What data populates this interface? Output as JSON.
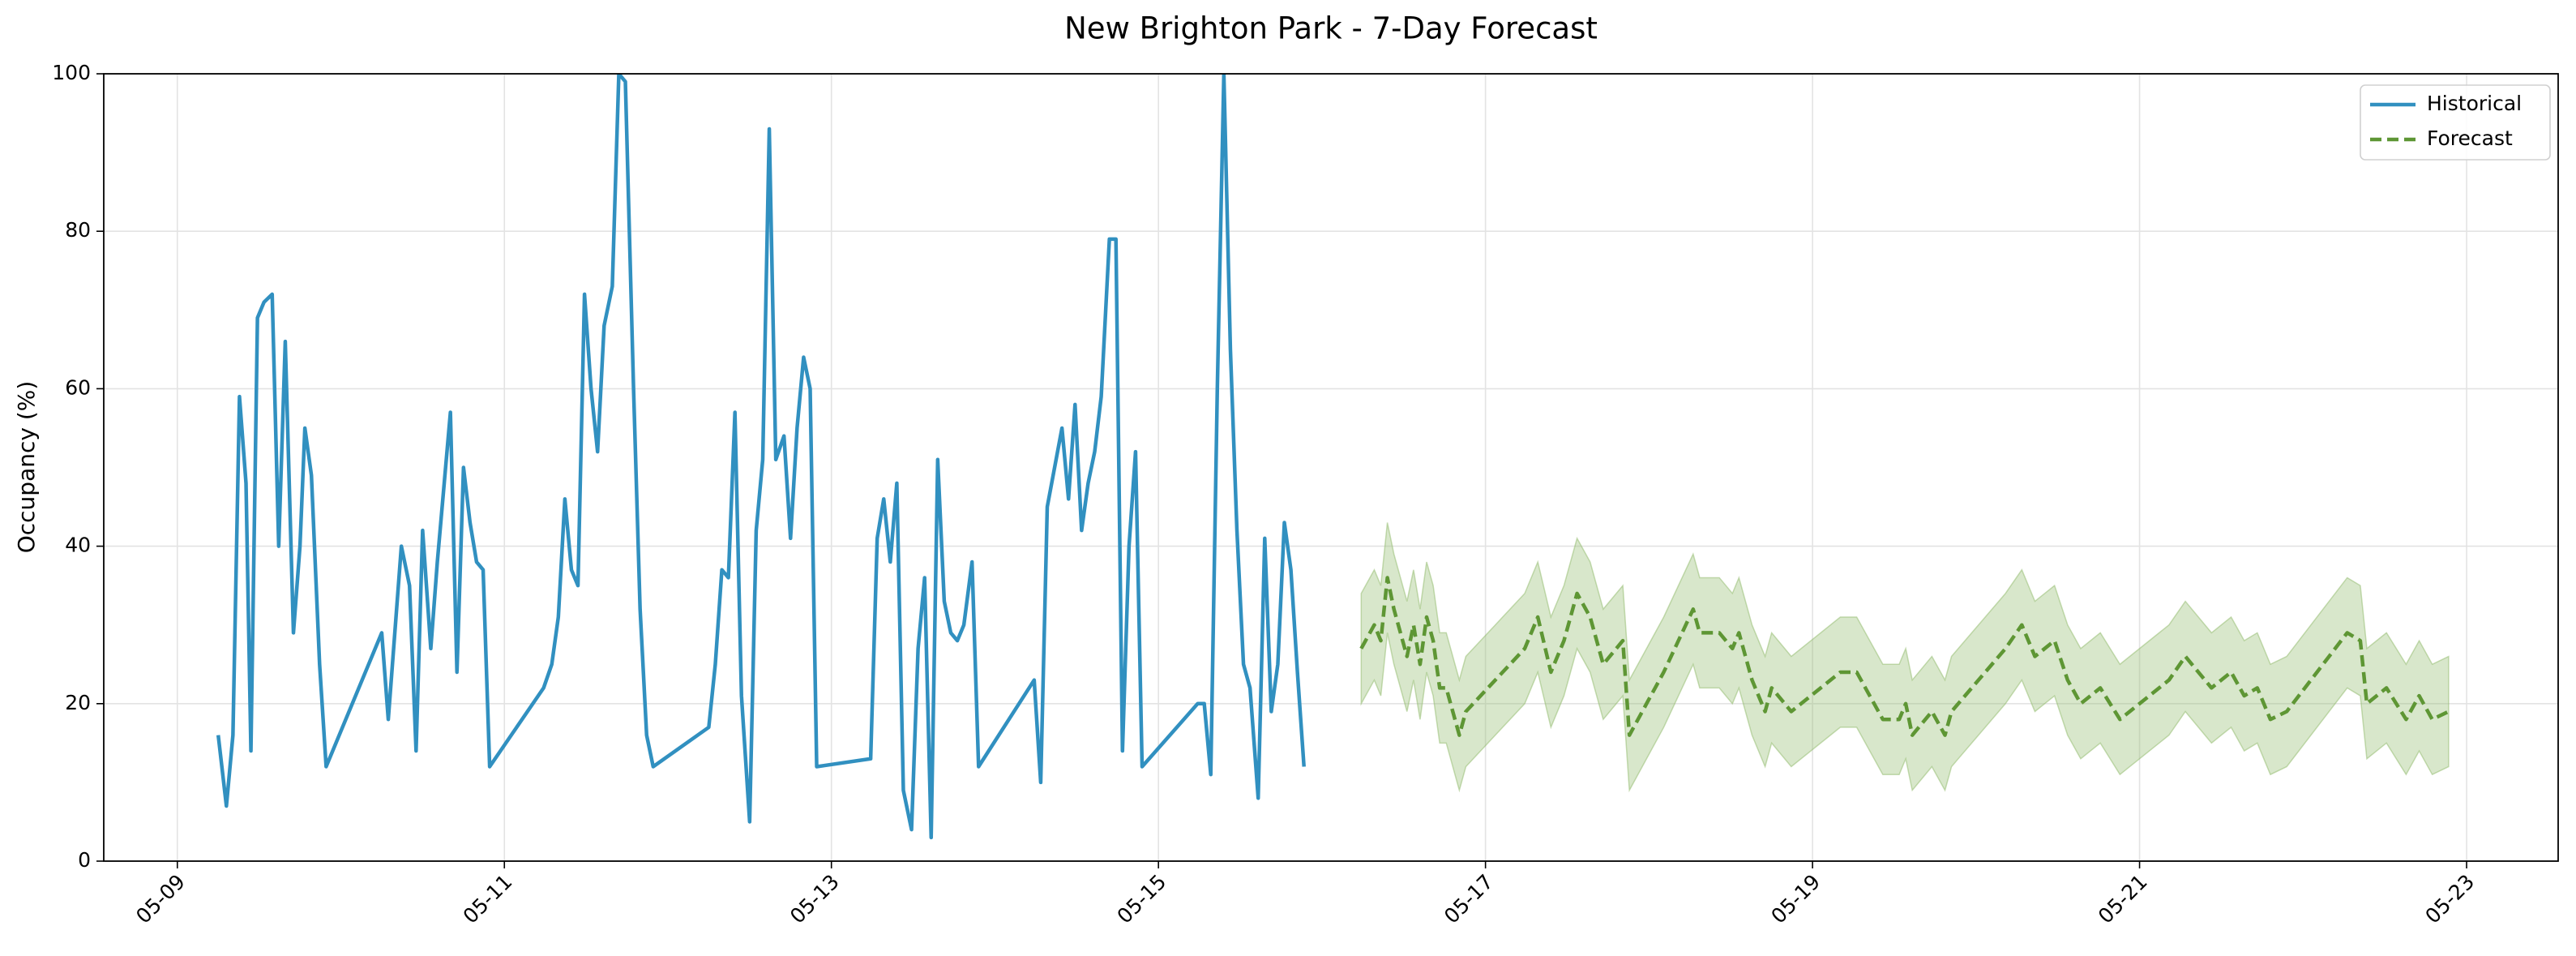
{
  "chart_data": {
    "type": "line",
    "title": "New Brighton Park - 7-Day Forecast",
    "y_label": "Occupancy (%)",
    "xlim": [
      8.55,
      23.56
    ],
    "xticks": [
      {
        "value": 9,
        "label": "05-09"
      },
      {
        "value": 11,
        "label": "05-11"
      },
      {
        "value": 13,
        "label": "05-13"
      },
      {
        "value": 15,
        "label": "05-15"
      },
      {
        "value": 17,
        "label": "05-17"
      },
      {
        "value": 19,
        "label": "05-19"
      },
      {
        "value": 21,
        "label": "05-21"
      },
      {
        "value": 23,
        "label": "05-23"
      }
    ],
    "ylim": [
      0,
      100
    ],
    "yticks": [
      0,
      20,
      40,
      60,
      80,
      100
    ],
    "grid": true,
    "legend": "upper right",
    "series": [
      {
        "name": "Historical",
        "color": "#3190c0",
        "linestyle": "solid",
        "x": [
          9.25,
          9.3,
          9.34,
          9.38,
          9.42,
          9.45,
          9.49,
          9.53,
          9.58,
          9.62,
          9.66,
          9.71,
          9.75,
          9.78,
          9.82,
          9.87,
          9.91,
          10.25,
          10.29,
          10.37,
          10.42,
          10.46,
          10.5,
          10.55,
          10.59,
          10.67,
          10.71,
          10.75,
          10.79,
          10.83,
          10.87,
          10.91,
          11.24,
          11.29,
          11.33,
          11.37,
          11.41,
          11.45,
          11.49,
          11.53,
          11.57,
          11.61,
          11.66,
          11.7,
          11.74,
          11.79,
          11.83,
          11.87,
          11.91,
          12.25,
          12.29,
          12.33,
          12.37,
          12.41,
          12.45,
          12.5,
          12.54,
          12.58,
          12.62,
          12.66,
          12.71,
          12.75,
          12.79,
          12.83,
          12.87,
          12.91,
          13.24,
          13.28,
          13.32,
          13.36,
          13.4,
          13.44,
          13.49,
          13.53,
          13.57,
          13.61,
          13.65,
          13.69,
          13.73,
          13.77,
          13.81,
          13.86,
          13.9,
          14.24,
          14.28,
          14.32,
          14.41,
          14.45,
          14.49,
          14.53,
          14.57,
          14.61,
          14.65,
          14.7,
          14.74,
          14.78,
          14.82,
          14.86,
          14.9,
          15.24,
          15.28,
          15.32,
          15.36,
          15.4,
          15.44,
          15.48,
          15.52,
          15.56,
          15.61,
          15.65,
          15.69,
          15.73,
          15.77,
          15.81,
          15.85,
          15.89
        ],
        "values": [
          16,
          7,
          16,
          59,
          48,
          14,
          69,
          71,
          72,
          40,
          66,
          29,
          40,
          55,
          49,
          25,
          12,
          29,
          18,
          40,
          35,
          14,
          42,
          27,
          38,
          57,
          24,
          50,
          43,
          38,
          37,
          12,
          22,
          25,
          31,
          46,
          37,
          35,
          72,
          60,
          52,
          68,
          73,
          100,
          99,
          60,
          32,
          16,
          12,
          17,
          25,
          37,
          36,
          57,
          21,
          5,
          42,
          51,
          93,
          51,
          54,
          41,
          55,
          64,
          60,
          12,
          13,
          41,
          46,
          38,
          48,
          9,
          4,
          27,
          36,
          3,
          51,
          33,
          29,
          28,
          30,
          38,
          12,
          23,
          10,
          45,
          55,
          46,
          58,
          42,
          48,
          52,
          59,
          79,
          79,
          14,
          40,
          52,
          12,
          20,
          20,
          11,
          60,
          100,
          65,
          42,
          25,
          22,
          8,
          41,
          19,
          25,
          43,
          37,
          24,
          12
        ]
      },
      {
        "name": "Forecast",
        "color": "#5e9634",
        "linestyle": "dashed",
        "band_color": "#8fba6a",
        "x": [
          16.24,
          16.32,
          16.36,
          16.4,
          16.44,
          16.52,
          16.56,
          16.6,
          16.64,
          16.68,
          16.72,
          16.76,
          16.84,
          16.88,
          17.06,
          17.24,
          17.32,
          17.4,
          17.48,
          17.56,
          17.64,
          17.72,
          17.84,
          17.88,
          18.09,
          18.27,
          18.31,
          18.43,
          18.51,
          18.55,
          18.63,
          18.71,
          18.75,
          18.87,
          19.17,
          19.27,
          19.43,
          19.53,
          19.57,
          19.61,
          19.73,
          19.81,
          19.85,
          20.18,
          20.28,
          20.36,
          20.48,
          20.56,
          20.64,
          20.76,
          20.88,
          21.18,
          21.28,
          21.44,
          21.56,
          21.64,
          21.72,
          21.8,
          21.9,
          22.27,
          22.35,
          22.39,
          22.51,
          22.63,
          22.71,
          22.79,
          22.89
        ],
        "values": [
          27,
          30,
          28,
          36,
          32,
          26,
          30,
          25,
          31,
          28,
          22,
          22,
          16,
          19,
          23,
          27,
          31,
          24,
          28,
          34,
          31,
          25,
          28,
          16,
          24,
          32,
          29,
          29,
          27,
          29,
          23,
          19,
          22,
          19,
          24,
          24,
          18,
          18,
          20,
          16,
          19,
          16,
          19,
          27,
          30,
          26,
          28,
          23,
          20,
          22,
          18,
          23,
          26,
          22,
          24,
          21,
          22,
          18,
          19,
          29,
          28,
          20,
          22,
          18,
          21,
          18,
          19
        ],
        "lower": [
          20,
          23,
          21,
          29,
          25,
          19,
          23,
          18,
          24,
          21,
          15,
          15,
          9,
          12,
          16,
          20,
          24,
          17,
          21,
          27,
          24,
          18,
          21,
          9,
          17,
          25,
          22,
          22,
          20,
          22,
          16,
          12,
          15,
          12,
          17,
          17,
          11,
          11,
          13,
          9,
          12,
          9,
          12,
          20,
          23,
          19,
          21,
          16,
          13,
          15,
          11,
          16,
          19,
          15,
          17,
          14,
          15,
          11,
          12,
          22,
          21,
          13,
          15,
          11,
          14,
          11,
          12
        ],
        "upper": [
          34,
          37,
          35,
          43,
          39,
          33,
          37,
          32,
          38,
          35,
          29,
          29,
          23,
          26,
          30,
          34,
          38,
          31,
          35,
          41,
          38,
          32,
          35,
          23,
          31,
          39,
          36,
          36,
          34,
          36,
          30,
          26,
          29,
          26,
          31,
          31,
          25,
          25,
          27,
          23,
          26,
          23,
          26,
          34,
          37,
          33,
          35,
          30,
          27,
          29,
          25,
          30,
          33,
          29,
          31,
          28,
          29,
          25,
          26,
          36,
          35,
          27,
          29,
          25,
          28,
          25,
          26
        ]
      }
    ]
  }
}
